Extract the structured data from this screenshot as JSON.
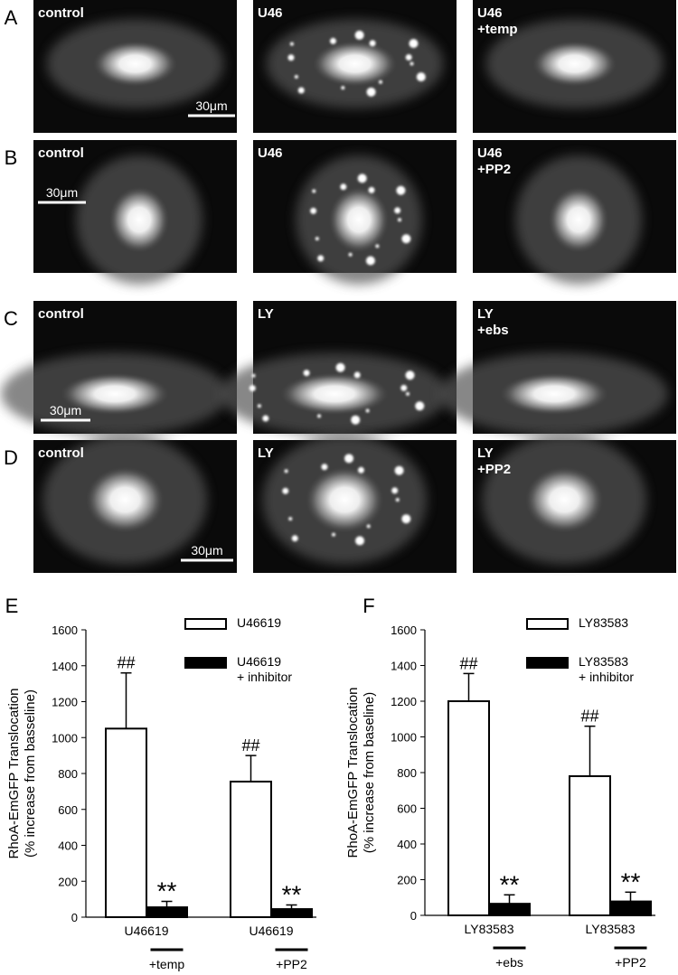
{
  "panels": [
    {
      "label": "A",
      "images": [
        "control",
        "U46",
        "U46\n+temp"
      ],
      "scale_bar": "30μm"
    },
    {
      "label": "B",
      "images": [
        "control",
        "U46",
        "U46\n+PP2"
      ],
      "scale_bar": "30μm"
    },
    {
      "label": "C",
      "images": [
        "control",
        "LY",
        "LY\n+ebs"
      ],
      "scale_bar": "30μm"
    },
    {
      "label": "D",
      "images": [
        "control",
        "LY",
        "LY\n+PP2"
      ],
      "scale_bar": "30μm"
    }
  ],
  "chart_data": [
    {
      "type": "bar",
      "panel_label": "E",
      "ylabel": [
        "RhoA-EmGFP Translocation",
        "(% increase from basseline)"
      ],
      "categories": [
        "U46619",
        "U46619"
      ],
      "treatments": [
        "+temp",
        "+PP2"
      ],
      "series": [
        {
          "name": "U46619",
          "color": "#ffffff",
          "values": [
            1050,
            755
          ],
          "errors": [
            310,
            145
          ],
          "annotations": [
            "##",
            "##"
          ]
        },
        {
          "name": "U46619\n+ inhibitor",
          "color": "#000000",
          "values": [
            55,
            45
          ],
          "errors": [
            33,
            23
          ],
          "annotations": [
            "**",
            "**"
          ]
        }
      ],
      "ylim": [
        0,
        1600
      ],
      "yticks": [
        0,
        200,
        400,
        600,
        800,
        1000,
        1200,
        1400,
        1600
      ]
    },
    {
      "type": "bar",
      "panel_label": "F",
      "ylabel": [
        "RhoA-EmGFP Translocation",
        "(% increase from baseline)"
      ],
      "categories": [
        "LY83583",
        "LY83583"
      ],
      "treatments": [
        "+ebs",
        "+PP2"
      ],
      "series": [
        {
          "name": "LY83583",
          "color": "#ffffff",
          "values": [
            1200,
            780
          ],
          "errors": [
            155,
            280
          ],
          "annotations": [
            "##",
            "##"
          ]
        },
        {
          "name": "LY83583\n+ inhibitor",
          "color": "#000000",
          "values": [
            65,
            78
          ],
          "errors": [
            50,
            52
          ],
          "annotations": [
            "**",
            "**"
          ]
        }
      ],
      "ylim": [
        0,
        1600
      ],
      "yticks": [
        0,
        200,
        400,
        600,
        800,
        1000,
        1200,
        1400,
        1600
      ]
    }
  ]
}
